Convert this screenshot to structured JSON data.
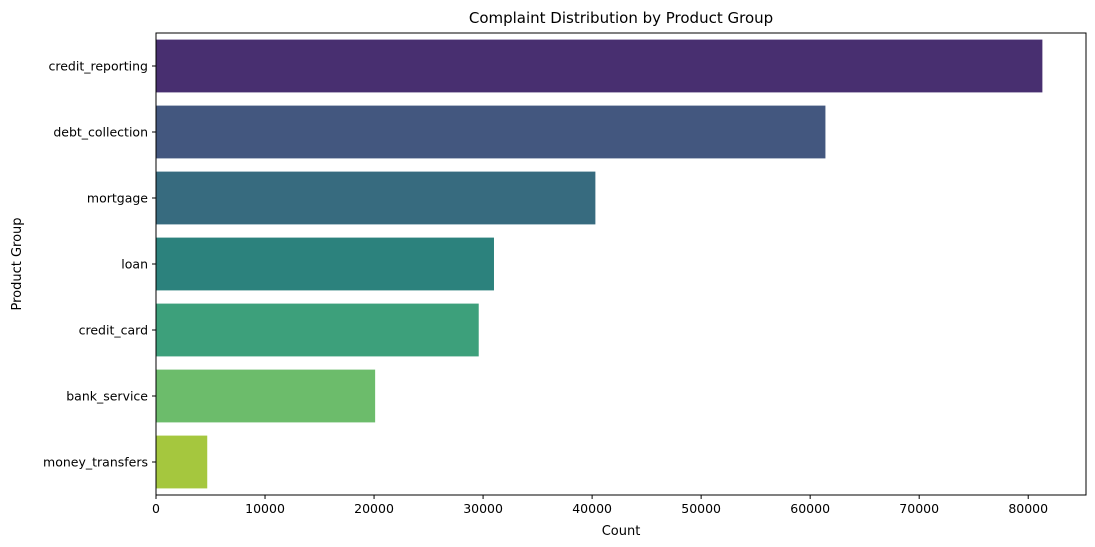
{
  "chart_data": {
    "type": "bar",
    "orientation": "horizontal",
    "title": "Complaint Distribution by Product Group",
    "xlabel": "Count",
    "ylabel": "Product Group",
    "xlim": [
      0,
      85300
    ],
    "xticks": [
      0,
      10000,
      20000,
      30000,
      40000,
      50000,
      60000,
      70000,
      80000
    ],
    "grid": false,
    "categories": [
      "credit_reporting",
      "debt_collection",
      "mortgage",
      "loan",
      "credit_card",
      "bank_service",
      "money_transfers"
    ],
    "values": [
      81300,
      61400,
      40300,
      31000,
      29600,
      20100,
      4700
    ],
    "colors": [
      "#482f70",
      "#43577f",
      "#376b7f",
      "#2c827d",
      "#3da07b",
      "#6cbc6b",
      "#a5c73e"
    ]
  }
}
